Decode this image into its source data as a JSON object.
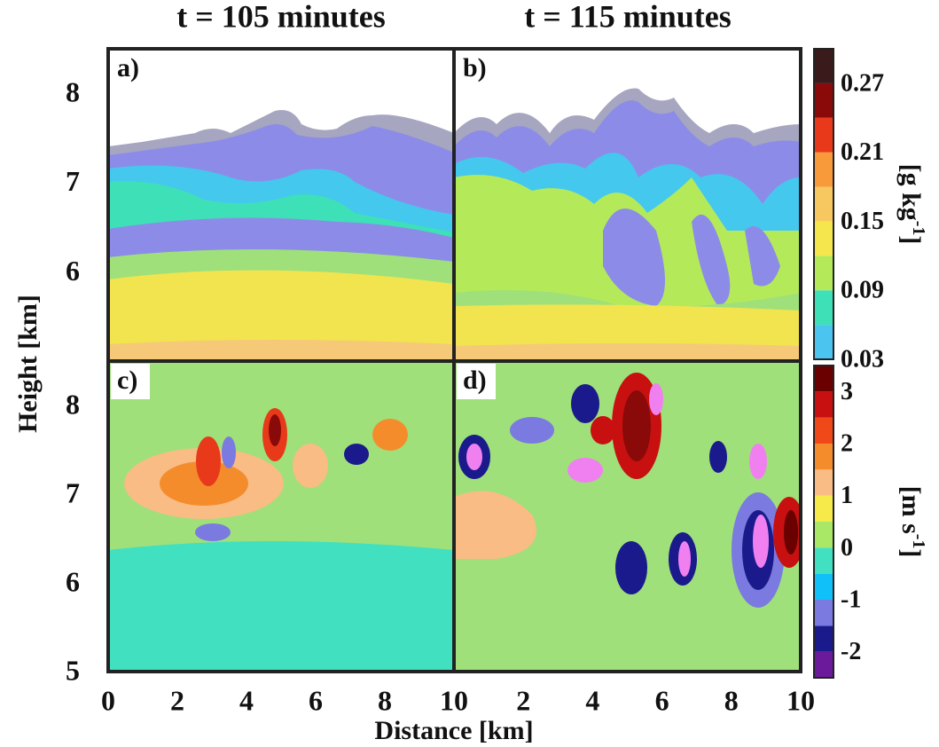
{
  "column_titles": [
    "t = 105 minutes",
    "t = 115 minutes"
  ],
  "y_label": "Height [km]",
  "x_label": "Distance [km]",
  "chart_data": [
    {
      "type": "contour",
      "label": "a)",
      "ylim": [
        5,
        8.5
      ],
      "yticks": [
        6,
        7,
        8
      ]
    },
    {
      "type": "contour",
      "label": "b)"
    },
    {
      "type": "contour",
      "label": "c)",
      "xlim": [
        0,
        10
      ],
      "xticks": [
        0,
        2,
        4,
        6,
        8,
        10
      ],
      "ylim": [
        5,
        8.5
      ],
      "yticks": [
        5,
        6,
        7,
        8
      ]
    },
    {
      "type": "contour",
      "label": "d)",
      "xlim": [
        0,
        10
      ],
      "xticks": [
        2,
        4,
        6,
        8,
        10
      ]
    }
  ],
  "colorbars": [
    {
      "label": "[g kg",
      "label_sup": "-1",
      "label_end": "]",
      "lim": [
        0.03,
        0.3
      ],
      "ticks": [
        0.03,
        0.09,
        0.15,
        0.21,
        0.27
      ],
      "bounds": [
        0.03,
        0.06,
        0.09,
        0.12,
        0.15,
        0.18,
        0.21,
        0.24,
        0.27,
        0.3
      ],
      "colors": [
        "#4cc4f0",
        "#3ee0b8",
        "#b4ea5a",
        "#f6e64e",
        "#f8c860",
        "#f89a3a",
        "#e83a1a",
        "#8a0a0a",
        "#3a1a1a"
      ]
    },
    {
      "label": "[m s",
      "label_sup": "-1",
      "label_end": "]",
      "lim": [
        -2.5,
        3.5
      ],
      "ticks": [
        -2,
        -1,
        0,
        1,
        2,
        3
      ],
      "bounds": [
        -2.5,
        -2,
        -1.5,
        -1,
        -0.5,
        0,
        0.5,
        1,
        1.5,
        2,
        2.5,
        3,
        3.5
      ],
      "colors": [
        "#6a1a9a",
        "#1a1a8c",
        "#7a7ae0",
        "#10c0f8",
        "#40e0c0",
        "#a8e866",
        "#f6ea4a",
        "#f8bc84",
        "#f58c2c",
        "#f04818",
        "#c81010",
        "#6a0000"
      ]
    }
  ]
}
